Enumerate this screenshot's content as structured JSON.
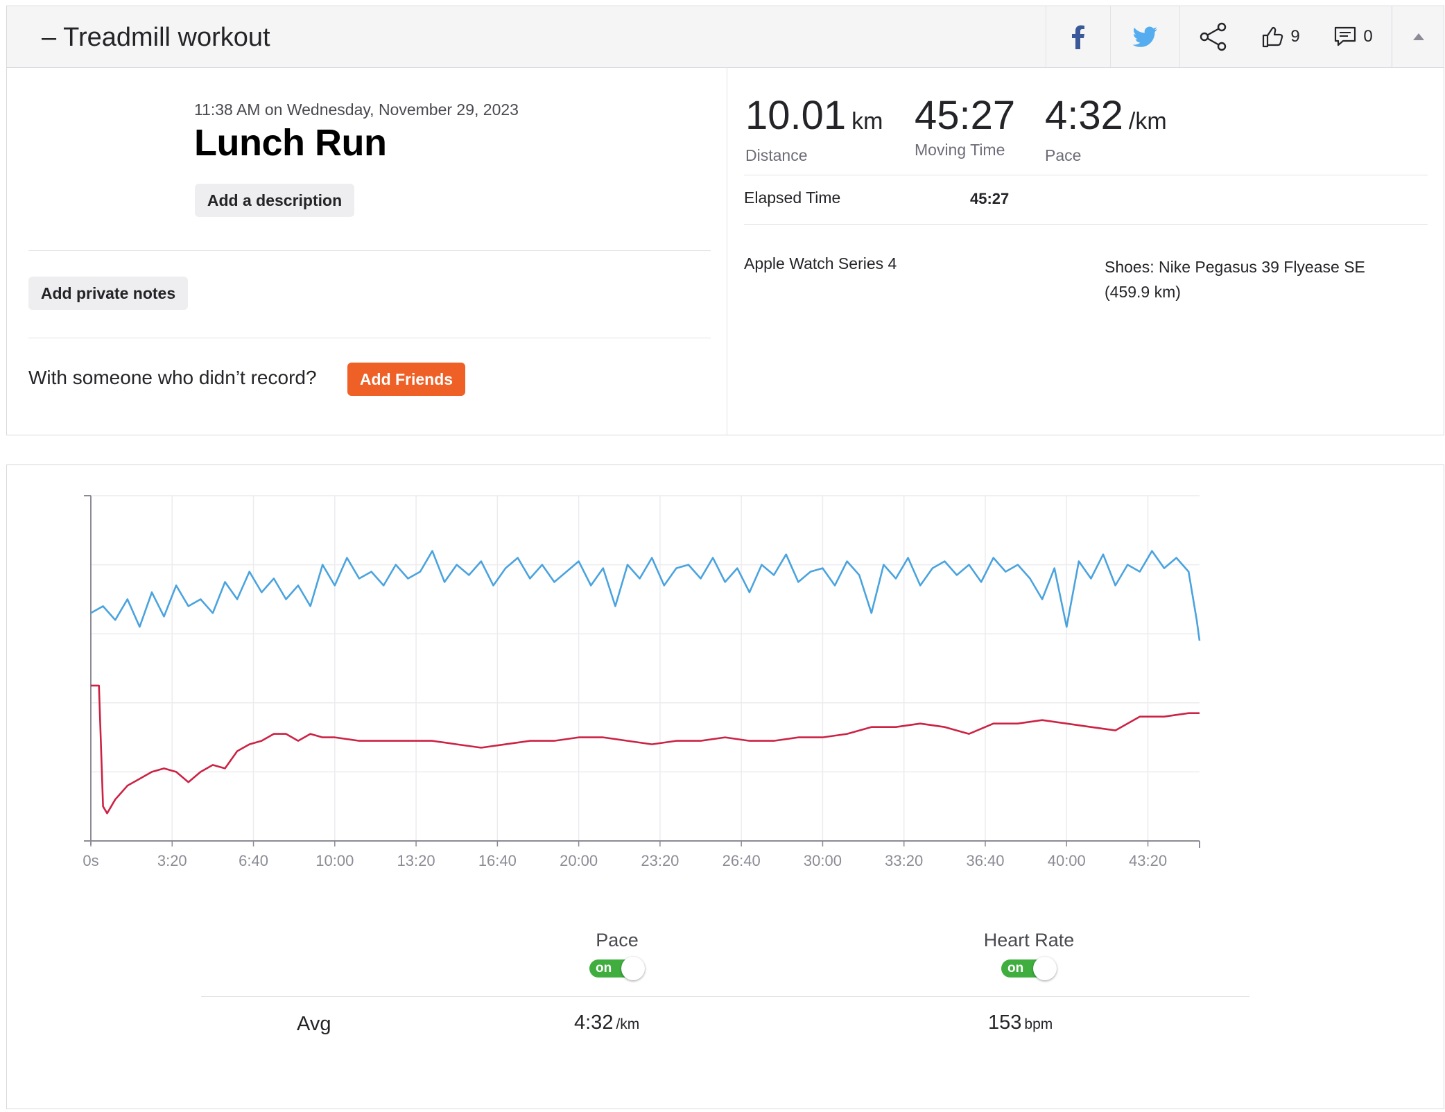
{
  "header": {
    "title": "Treadmill workout",
    "collapse_symbol": "–",
    "kudos_count": "9",
    "comment_count": "0",
    "icons": [
      "facebook-icon",
      "twitter-icon",
      "share-icon",
      "thumbs-up-icon",
      "comment-icon",
      "collapse-arrow-icon"
    ]
  },
  "activity": {
    "timestamp": "11:38 AM on Wednesday, November 29, 2023",
    "name": "Lunch Run",
    "add_description": "Add a description",
    "add_private_notes": "Add private notes",
    "friends_question": "With someone who didn’t record?",
    "add_friends": "Add Friends"
  },
  "stats": {
    "distance": {
      "value": "10.01",
      "unit": "km",
      "label": "Distance"
    },
    "moving_time": {
      "value": "45:27",
      "label": "Moving Time"
    },
    "pace": {
      "value": "4:32",
      "unit": "/km",
      "label": "Pace"
    },
    "elapsed_label": "Elapsed Time",
    "elapsed_value": "45:27",
    "device": "Apple Watch Series 4",
    "shoes": "Shoes: Nike Pegasus 39 Flyease SE (459.9 km)"
  },
  "chart_data": {
    "type": "line",
    "x_unit": "seconds",
    "x_ticks": [
      "0s",
      "3:20",
      "6:40",
      "10:00",
      "13:20",
      "16:40",
      "20:00",
      "23:20",
      "26:40",
      "30:00",
      "33:20",
      "36:40",
      "40:00",
      "43:20"
    ],
    "x_tick_seconds": [
      0,
      200,
      400,
      600,
      800,
      1000,
      1200,
      1400,
      1600,
      1800,
      2000,
      2200,
      2400,
      2600
    ],
    "x_range": [
      0,
      2727
    ],
    "y_range": [
      0,
      100
    ],
    "grid": true,
    "series": [
      {
        "name": "Pace",
        "color": "#4aa3de",
        "x": [
          0,
          30,
          60,
          90,
          120,
          150,
          180,
          210,
          240,
          270,
          300,
          330,
          360,
          390,
          420,
          450,
          480,
          510,
          540,
          570,
          600,
          630,
          660,
          690,
          720,
          750,
          780,
          810,
          840,
          870,
          900,
          930,
          960,
          990,
          1020,
          1050,
          1080,
          1110,
          1140,
          1170,
          1200,
          1230,
          1260,
          1290,
          1320,
          1350,
          1380,
          1410,
          1440,
          1470,
          1500,
          1530,
          1560,
          1590,
          1620,
          1650,
          1680,
          1710,
          1740,
          1770,
          1800,
          1830,
          1860,
          1890,
          1920,
          1950,
          1980,
          2010,
          2040,
          2070,
          2100,
          2130,
          2160,
          2190,
          2220,
          2250,
          2280,
          2310,
          2340,
          2370,
          2400,
          2430,
          2460,
          2490,
          2520,
          2550,
          2580,
          2610,
          2640,
          2670,
          2700,
          2720,
          2727
        ],
        "y": [
          66,
          68,
          64,
          70,
          62,
          72,
          65,
          74,
          68,
          70,
          66,
          75,
          70,
          78,
          72,
          76,
          70,
          74,
          68,
          80,
          74,
          82,
          76,
          78,
          74,
          80,
          76,
          78,
          84,
          75,
          80,
          77,
          81,
          74,
          79,
          82,
          76,
          80,
          75,
          78,
          81,
          74,
          79,
          68,
          80,
          76,
          82,
          74,
          79,
          80,
          76,
          82,
          75,
          79,
          72,
          80,
          77,
          83,
          75,
          78,
          79,
          74,
          81,
          77,
          66,
          80,
          76,
          82,
          74,
          79,
          81,
          77,
          80,
          75,
          82,
          78,
          80,
          76,
          70,
          79,
          62,
          81,
          76,
          83,
          74,
          80,
          78,
          84,
          79,
          82,
          78,
          64,
          58
        ]
      },
      {
        "name": "Heart Rate",
        "color": "#cc2244",
        "x": [
          0,
          20,
          30,
          40,
          60,
          90,
          120,
          150,
          180,
          210,
          240,
          270,
          300,
          330,
          360,
          390,
          420,
          450,
          480,
          510,
          540,
          570,
          600,
          660,
          720,
          780,
          840,
          900,
          960,
          1020,
          1080,
          1140,
          1200,
          1260,
          1320,
          1380,
          1440,
          1500,
          1560,
          1620,
          1680,
          1740,
          1800,
          1860,
          1920,
          1980,
          2040,
          2100,
          2160,
          2220,
          2280,
          2340,
          2400,
          2460,
          2520,
          2580,
          2640,
          2700,
          2727
        ],
        "y": [
          45,
          45,
          10,
          8,
          12,
          16,
          18,
          20,
          21,
          20,
          17,
          20,
          22,
          21,
          26,
          28,
          29,
          31,
          31,
          29,
          31,
          30,
          30,
          29,
          29,
          29,
          29,
          28,
          27,
          28,
          29,
          29,
          30,
          30,
          29,
          28,
          29,
          29,
          30,
          29,
          29,
          30,
          30,
          31,
          33,
          33,
          34,
          33,
          31,
          34,
          34,
          35,
          34,
          33,
          32,
          36,
          36,
          37,
          37
        ]
      }
    ]
  },
  "toggles": [
    {
      "label": "Pace",
      "state": "on"
    },
    {
      "label": "Heart Rate",
      "state": "on"
    }
  ],
  "summary": {
    "avg_label": "Avg",
    "pace_value": "4:32",
    "pace_unit": "/km",
    "hr_value": "153",
    "hr_unit": "bpm"
  }
}
